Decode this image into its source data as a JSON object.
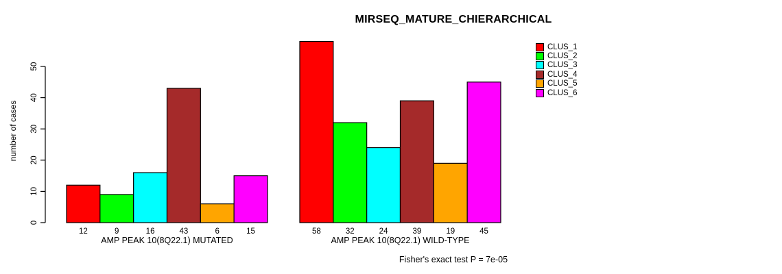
{
  "title": "MIRSEQ_MATURE_CHIERARCHICAL",
  "footer": "Fisher's exact test P = 7e-05",
  "chart_data": {
    "type": "bar",
    "title": "MIRSEQ_MATURE_CHIERARCHICAL",
    "xlabel": "",
    "ylabel": "number of cases",
    "ylim": [
      0,
      58
    ],
    "yticks": [
      0,
      10,
      20,
      30,
      40,
      50
    ],
    "grid": false,
    "legend_position": "top-right",
    "legend": [
      "CLUS_1",
      "CLUS_2",
      "CLUS_3",
      "CLUS_4",
      "CLUS_5",
      "CLUS_6"
    ],
    "colors": [
      "#FF0000",
      "#00FF00",
      "#00FFFF",
      "#A52A2A",
      "#FFA500",
      "#FF00FF"
    ],
    "bar_border_color": "#000000",
    "categories": [
      "AMP PEAK 10(8Q22.1) MUTATED",
      "AMP PEAK 10(8Q22.1) WILD-TYPE"
    ],
    "groups": [
      {
        "label": "AMP PEAK 10(8Q22.1) MUTATED",
        "values": [
          12,
          9,
          16,
          43,
          6,
          15
        ]
      },
      {
        "label": "AMP PEAK 10(8Q22.1) WILD-TYPE",
        "values": [
          58,
          32,
          24,
          39,
          19,
          45
        ]
      }
    ],
    "bar_value_labels_shown": true,
    "annotation": "Fisher's exact test P = 7e-05"
  }
}
